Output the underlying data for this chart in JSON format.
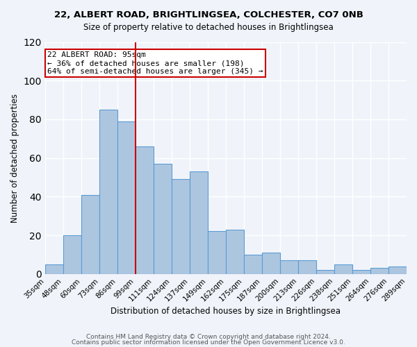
{
  "title": "22, ALBERT ROAD, BRIGHTLINGSEA, COLCHESTER, CO7 0NB",
  "subtitle": "Size of property relative to detached houses in Brightlingsea",
  "xlabel": "Distribution of detached houses by size in Brightlingsea",
  "ylabel": "Number of detached properties",
  "bar_color": "#adc6e0",
  "bar_edge_color": "#5b9bd5",
  "bin_labels": [
    "35sqm",
    "48sqm",
    "60sqm",
    "73sqm",
    "86sqm",
    "99sqm",
    "111sqm",
    "124sqm",
    "137sqm",
    "149sqm",
    "162sqm",
    "175sqm",
    "187sqm",
    "200sqm",
    "213sqm",
    "226sqm",
    "238sqm",
    "251sqm",
    "264sqm",
    "276sqm",
    "289sqm"
  ],
  "bar_heights": [
    5,
    20,
    41,
    85,
    79,
    66,
    57,
    49,
    53,
    22,
    23,
    10,
    11,
    7,
    7,
    2,
    5,
    2,
    3,
    4
  ],
  "vline_x": 5,
  "vline_color": "#cc0000",
  "ylim": [
    0,
    120
  ],
  "yticks": [
    0,
    20,
    40,
    60,
    80,
    100,
    120
  ],
  "annotation_title": "22 ALBERT ROAD: 95sqm",
  "annotation_line1": "← 36% of detached houses are smaller (198)",
  "annotation_line2": "64% of semi-detached houses are larger (345) →",
  "footer1": "Contains HM Land Registry data © Crown copyright and database right 2024.",
  "footer2": "Contains public sector information licensed under the Open Government Licence v3.0.",
  "bg_color": "#f0f4fa",
  "plot_bg_color": "#f0f4fa"
}
